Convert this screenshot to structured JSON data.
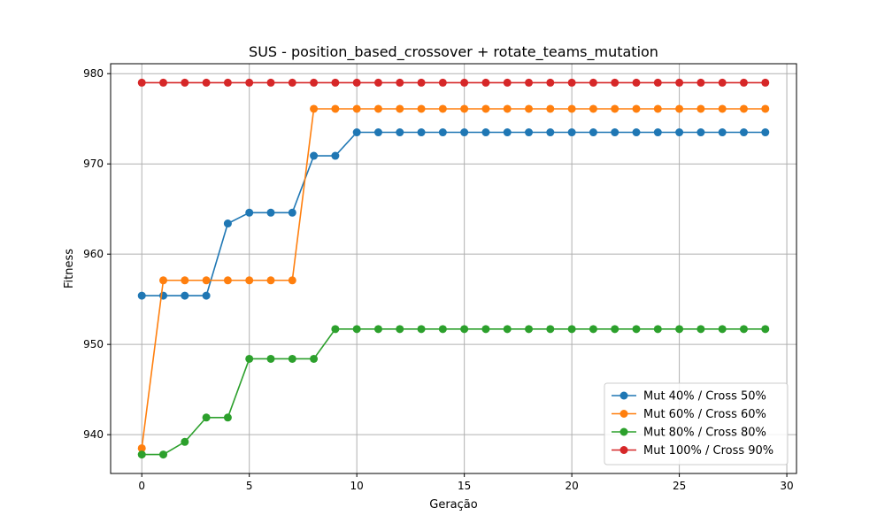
{
  "chart_data": {
    "type": "line",
    "title": "SUS - position_based_crossover + rotate_teams_mutation",
    "xlabel": "Geração",
    "ylabel": "Fitness",
    "xlim": [
      -1.45,
      30.45
    ],
    "ylim": [
      935.7,
      981.1
    ],
    "xticks": [
      0,
      5,
      10,
      15,
      20,
      25,
      30
    ],
    "yticks": [
      940,
      950,
      960,
      970,
      980
    ],
    "grid": true,
    "legend_position": "lower right",
    "x": [
      0,
      1,
      2,
      3,
      4,
      5,
      6,
      7,
      8,
      9,
      10,
      11,
      12,
      13,
      14,
      15,
      16,
      17,
      18,
      19,
      20,
      21,
      22,
      23,
      24,
      25,
      26,
      27,
      28,
      29
    ],
    "series": [
      {
        "name": "Mut 40% / Cross 50%",
        "color": "#1f77b4",
        "values": [
          955.4,
          955.4,
          955.4,
          955.4,
          963.4,
          964.6,
          964.6,
          964.6,
          970.9,
          970.9,
          973.5,
          973.5,
          973.5,
          973.5,
          973.5,
          973.5,
          973.5,
          973.5,
          973.5,
          973.5,
          973.5,
          973.5,
          973.5,
          973.5,
          973.5,
          973.5,
          973.5,
          973.5,
          973.5,
          973.5
        ]
      },
      {
        "name": "Mut 60% / Cross 60%",
        "color": "#ff7f0e",
        "values": [
          938.5,
          957.1,
          957.1,
          957.1,
          957.1,
          957.1,
          957.1,
          957.1,
          976.1,
          976.1,
          976.1,
          976.1,
          976.1,
          976.1,
          976.1,
          976.1,
          976.1,
          976.1,
          976.1,
          976.1,
          976.1,
          976.1,
          976.1,
          976.1,
          976.1,
          976.1,
          976.1,
          976.1,
          976.1,
          976.1
        ]
      },
      {
        "name": "Mut 80% / Cross 80%",
        "color": "#2ca02c",
        "values": [
          937.8,
          937.8,
          939.2,
          941.9,
          941.9,
          948.4,
          948.4,
          948.4,
          948.4,
          951.7,
          951.7,
          951.7,
          951.7,
          951.7,
          951.7,
          951.7,
          951.7,
          951.7,
          951.7,
          951.7,
          951.7,
          951.7,
          951.7,
          951.7,
          951.7,
          951.7,
          951.7,
          951.7,
          951.7,
          951.7
        ]
      },
      {
        "name": "Mut 100% / Cross 90%",
        "color": "#d62728",
        "values": [
          979,
          979,
          979,
          979,
          979,
          979,
          979,
          979,
          979,
          979,
          979,
          979,
          979,
          979,
          979,
          979,
          979,
          979,
          979,
          979,
          979,
          979,
          979,
          979,
          979,
          979,
          979,
          979,
          979,
          979
        ]
      }
    ]
  }
}
